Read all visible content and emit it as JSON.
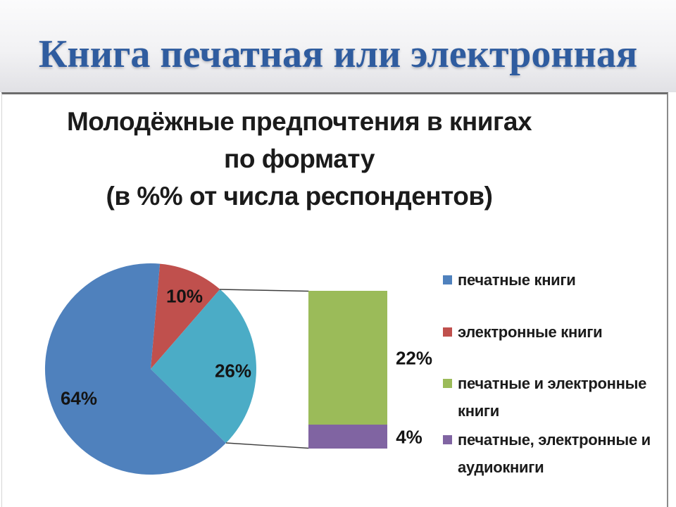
{
  "slide": {
    "title": "Книга печатная или электронная",
    "title_color": "#2F5C9F"
  },
  "chart": {
    "title_lines": [
      "Молодёжные предпочтения в книгах",
      "по формату",
      "(в %% от числа респондентов)"
    ]
  },
  "chart_data": {
    "type": "pie",
    "subtype": "bar-of-pie",
    "title": "Молодёжные предпочтения в книгах по формату (в %% от числа респондентов)",
    "slices": [
      {
        "legend_label": "электронные книги",
        "value": 10,
        "display": "10%",
        "color": "#C0504D"
      },
      {
        "value": 26,
        "display": "26%",
        "color": "#4BACC6",
        "breakout": true
      },
      {
        "legend_label": "печатные книги",
        "value": 64,
        "display": "64%",
        "color": "#4F81BD"
      }
    ],
    "breakout_bar": {
      "segments": [
        {
          "legend_label": "печатные и электронные книги",
          "value": 22,
          "display": "22%",
          "color": "#9BBB59"
        },
        {
          "legend_label": "печатные, электронные и аудиокниги",
          "value": 4,
          "display": "4%",
          "color": "#8064A2"
        }
      ]
    },
    "legend": [
      {
        "label": "печатные книги",
        "color": "#4F81BD"
      },
      {
        "label": "электронные книги",
        "color": "#C0504D"
      },
      {
        "label": "печатные и электронные книги",
        "color": "#9BBB59"
      },
      {
        "label": "печатные, электронные и аудиокниги",
        "color": "#8064A2"
      }
    ],
    "legend_position": "right",
    "grid": false
  }
}
